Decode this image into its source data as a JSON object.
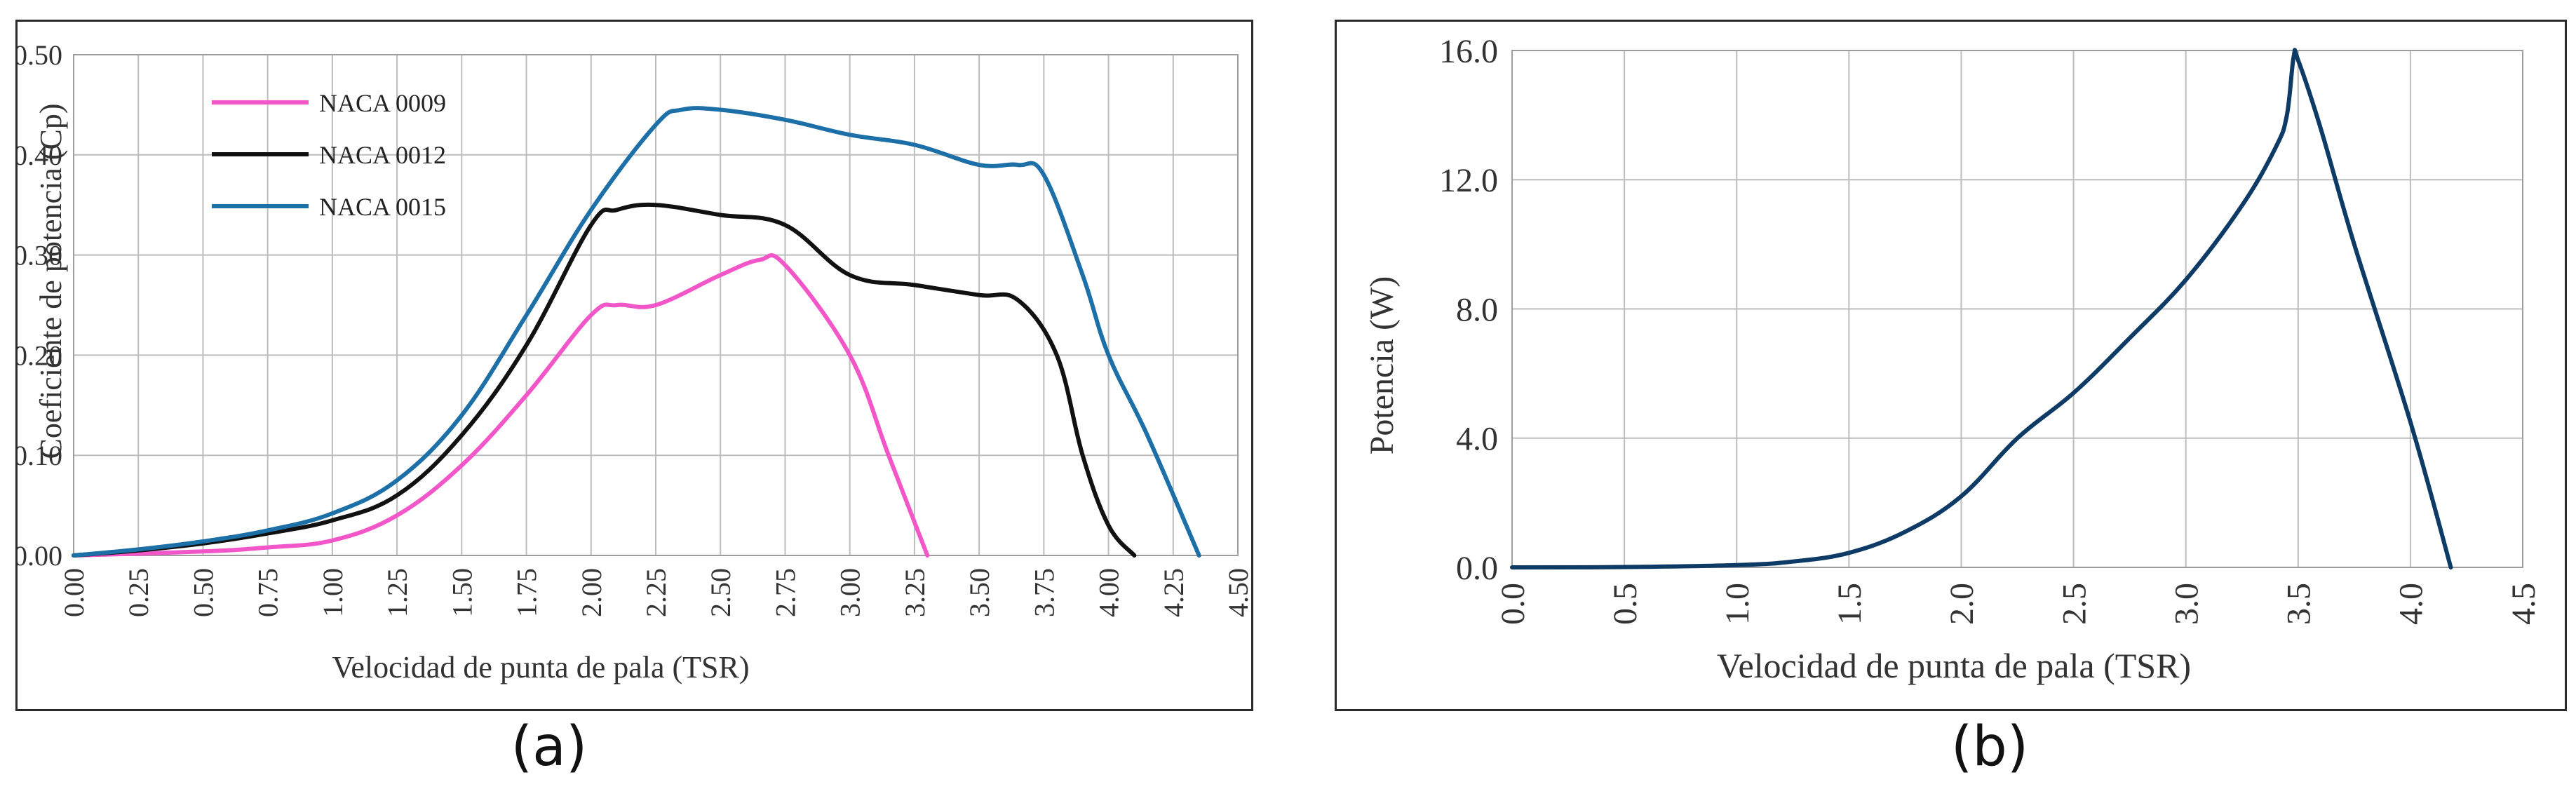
{
  "captions": {
    "a": "(a)",
    "b": "(b)"
  },
  "chart_data": [
    {
      "type": "line",
      "xlabel": "Velocidad de punta de pala (TSR)",
      "ylabel": "Coeficiente de potencia (Cp)",
      "xlim": [
        0,
        4.5
      ],
      "ylim": [
        0,
        0.5
      ],
      "xticks": [
        "0.00",
        "0.25",
        "0.50",
        "0.75",
        "1.00",
        "1.25",
        "1.50",
        "1.75",
        "2.00",
        "2.25",
        "2.50",
        "2.75",
        "3.00",
        "3.25",
        "3.50",
        "3.75",
        "4.00",
        "4.25",
        "4.50"
      ],
      "yticks": [
        "0.00",
        "0.10",
        "0.20",
        "0.30",
        "0.40",
        "0.50"
      ],
      "grid": true,
      "legend_position": "top-left",
      "series": [
        {
          "name": "NACA 0009",
          "color": "#f256c8",
          "x": [
            0,
            0.5,
            0.75,
            1.0,
            1.25,
            1.5,
            1.75,
            2.0,
            2.1,
            2.25,
            2.5,
            2.65,
            2.75,
            3.0,
            3.15,
            3.3
          ],
          "y": [
            0,
            0.004,
            0.008,
            0.015,
            0.04,
            0.09,
            0.16,
            0.24,
            0.25,
            0.25,
            0.28,
            0.295,
            0.29,
            0.2,
            0.1,
            0.0
          ]
        },
        {
          "name": "NACA 0012",
          "color": "#111111",
          "x": [
            0,
            0.25,
            0.5,
            0.75,
            1.0,
            1.25,
            1.5,
            1.75,
            2.0,
            2.1,
            2.25,
            2.5,
            2.75,
            3.0,
            3.25,
            3.5,
            3.65,
            3.8,
            3.9,
            4.0,
            4.1
          ],
          "y": [
            0,
            0.005,
            0.012,
            0.022,
            0.035,
            0.06,
            0.12,
            0.21,
            0.33,
            0.345,
            0.35,
            0.34,
            0.33,
            0.28,
            0.27,
            0.26,
            0.255,
            0.2,
            0.1,
            0.03,
            0.0
          ]
        },
        {
          "name": "NACA 0015",
          "color": "#1d6fa8",
          "x": [
            0,
            0.25,
            0.5,
            0.75,
            1.0,
            1.25,
            1.5,
            1.75,
            2.0,
            2.25,
            2.35,
            2.5,
            2.75,
            3.0,
            3.25,
            3.5,
            3.65,
            3.75,
            3.9,
            4.0,
            4.15,
            4.35
          ],
          "y": [
            0,
            0.006,
            0.014,
            0.025,
            0.042,
            0.075,
            0.14,
            0.24,
            0.345,
            0.43,
            0.445,
            0.445,
            0.435,
            0.42,
            0.41,
            0.39,
            0.39,
            0.38,
            0.28,
            0.2,
            0.12,
            0.0
          ]
        }
      ]
    },
    {
      "type": "line",
      "xlabel": "Velocidad de punta de pala (TSR)",
      "ylabel": "Potencia (W)",
      "xlim": [
        0,
        4.5
      ],
      "ylim": [
        0,
        16
      ],
      "xticks": [
        "0.0",
        "0.5",
        "1.0",
        "1.5",
        "2.0",
        "2.5",
        "3.0",
        "3.5",
        "4.0",
        "4.5"
      ],
      "yticks": [
        "0.0",
        "4.0",
        "8.0",
        "12.0",
        "16.0"
      ],
      "grid": true,
      "series": [
        {
          "color": "#0d3b66",
          "x": [
            0,
            0.5,
            1.0,
            1.25,
            1.5,
            1.75,
            2.0,
            2.25,
            2.5,
            2.75,
            3.0,
            3.25,
            3.4,
            3.45,
            3.48,
            3.5,
            3.6,
            3.75,
            4.0,
            4.18
          ],
          "y": [
            0,
            0.01,
            0.07,
            0.18,
            0.45,
            1.1,
            2.2,
            4.0,
            5.4,
            7.1,
            8.9,
            11.2,
            13.0,
            14.0,
            15.8,
            15.7,
            13.6,
            10.0,
            4.5,
            0.0
          ]
        }
      ]
    }
  ]
}
